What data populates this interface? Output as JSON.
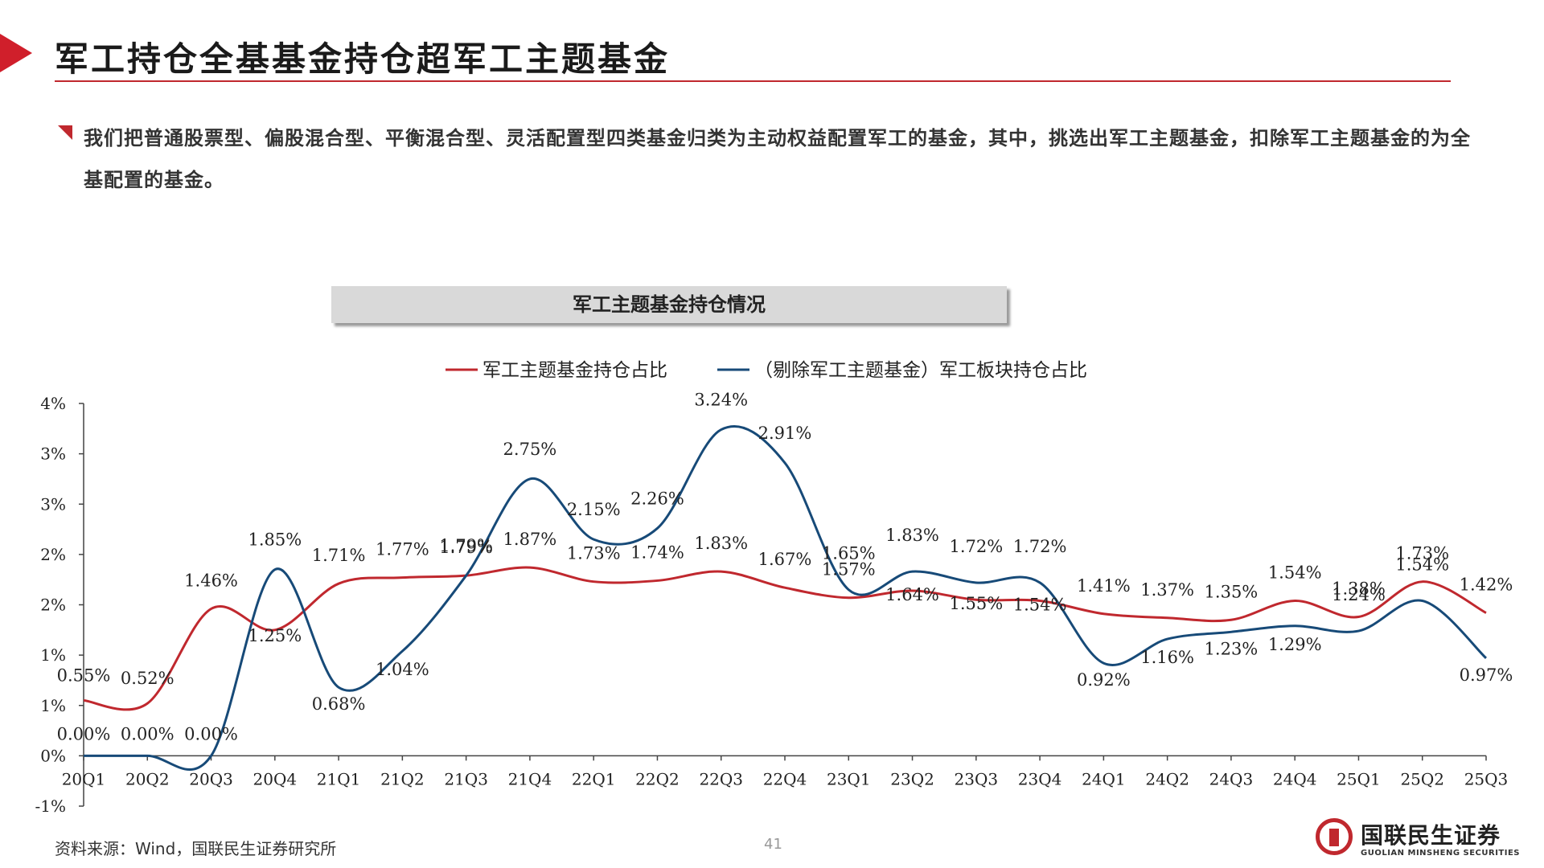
{
  "header": {
    "title": "军工持仓全基基金持仓超军工主题基金",
    "bullet": "我们把普通股票型、偏股混合型、平衡混合型、灵活配置型四类基金归类为主动权益配置军工的基金，其中，挑选出军工主题基金，扣除军工主题基金的为全基配置的基金。"
  },
  "chart_data": {
    "type": "line",
    "title": "军工主题基金持仓情况",
    "legend_position": "top",
    "x": [
      "20Q1",
      "20Q2",
      "20Q3",
      "20Q4",
      "21Q1",
      "21Q2",
      "21Q3",
      "21Q4",
      "22Q1",
      "22Q2",
      "22Q3",
      "22Q4",
      "23Q1",
      "23Q2",
      "23Q3",
      "23Q4",
      "24Q1",
      "24Q2",
      "24Q3",
      "24Q4",
      "25Q1",
      "25Q2",
      "25Q3"
    ],
    "y_ticks": [
      "4%",
      "3%",
      "3%",
      "2%",
      "2%",
      "1%",
      "1%",
      "0%",
      "-1%"
    ],
    "ylim": [
      -0.5,
      3.5
    ],
    "series": [
      {
        "name": "军工主题基金持仓占比",
        "color": "#c0282e",
        "values": [
          0.55,
          0.52,
          1.46,
          1.25,
          1.71,
          1.77,
          1.79,
          1.87,
          1.73,
          1.74,
          1.83,
          1.67,
          1.57,
          1.64,
          1.55,
          1.54,
          1.41,
          1.37,
          1.35,
          1.54,
          1.38,
          1.73,
          1.42
        ],
        "labels": [
          "0.55%",
          "0.52%",
          "1.46%",
          "1.25%",
          "1.71%",
          "1.77%",
          "1.79%",
          "1.87%",
          "1.73%",
          "1.74%",
          "1.83%",
          "1.67%",
          "1.57%",
          "1.64%",
          "1.55%",
          "1.54%",
          "1.41%",
          "1.37%",
          "1.35%",
          "1.54%",
          "1.38%",
          "1.73%",
          "1.42%"
        ]
      },
      {
        "name": "（剔除军工主题基金）军工板块持仓占比",
        "color": "#174a78",
        "values": [
          0.0,
          0.0,
          0.0,
          1.85,
          0.68,
          1.04,
          1.79,
          2.75,
          2.15,
          2.26,
          3.24,
          2.91,
          1.65,
          1.83,
          1.72,
          1.72,
          0.92,
          1.16,
          1.23,
          1.29,
          1.24,
          1.54,
          0.97
        ],
        "labels": [
          "0.00%",
          "0.00%",
          "0.00%",
          "1.85%",
          "0.68%",
          "1.04%",
          "1.79%",
          "2.75%",
          "2.15%",
          "2.26%",
          "3.24%",
          "2.91%",
          "1.65%",
          "1.83%",
          "1.72%",
          "1.72%",
          "0.92%",
          "1.16%",
          "1.23%",
          "1.29%",
          "1.24%",
          "1.54%",
          "0.97%"
        ]
      }
    ]
  },
  "footer": {
    "source": "资料来源：Wind，国联民生证券研究所",
    "page_number": "41",
    "logo_text": "国联民生证券",
    "logo_subtext": "GUOLIAN MINSHENG SECURITIES"
  }
}
